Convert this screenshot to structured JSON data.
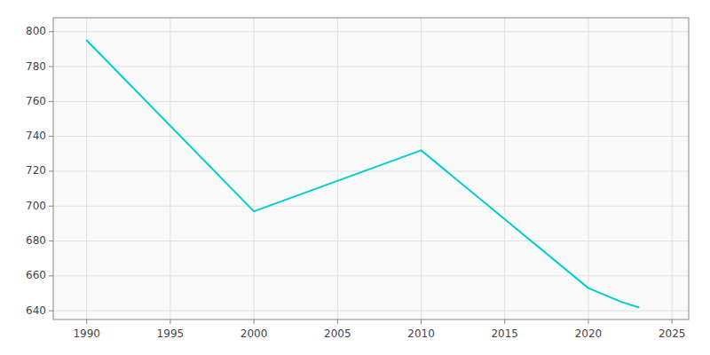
{
  "chart_data": {
    "type": "line",
    "x": [
      1990,
      2000,
      2010,
      2020,
      2022,
      2023
    ],
    "values": [
      795,
      697,
      732,
      653,
      645,
      642
    ],
    "color": "#00CED1",
    "xlim": [
      1988,
      2026
    ],
    "ylim": [
      635,
      808
    ],
    "xticks": [
      1990,
      1995,
      2000,
      2005,
      2010,
      2015,
      2020,
      2025
    ],
    "yticks": [
      640,
      660,
      680,
      700,
      720,
      740,
      760,
      780,
      800
    ],
    "grid": true
  }
}
